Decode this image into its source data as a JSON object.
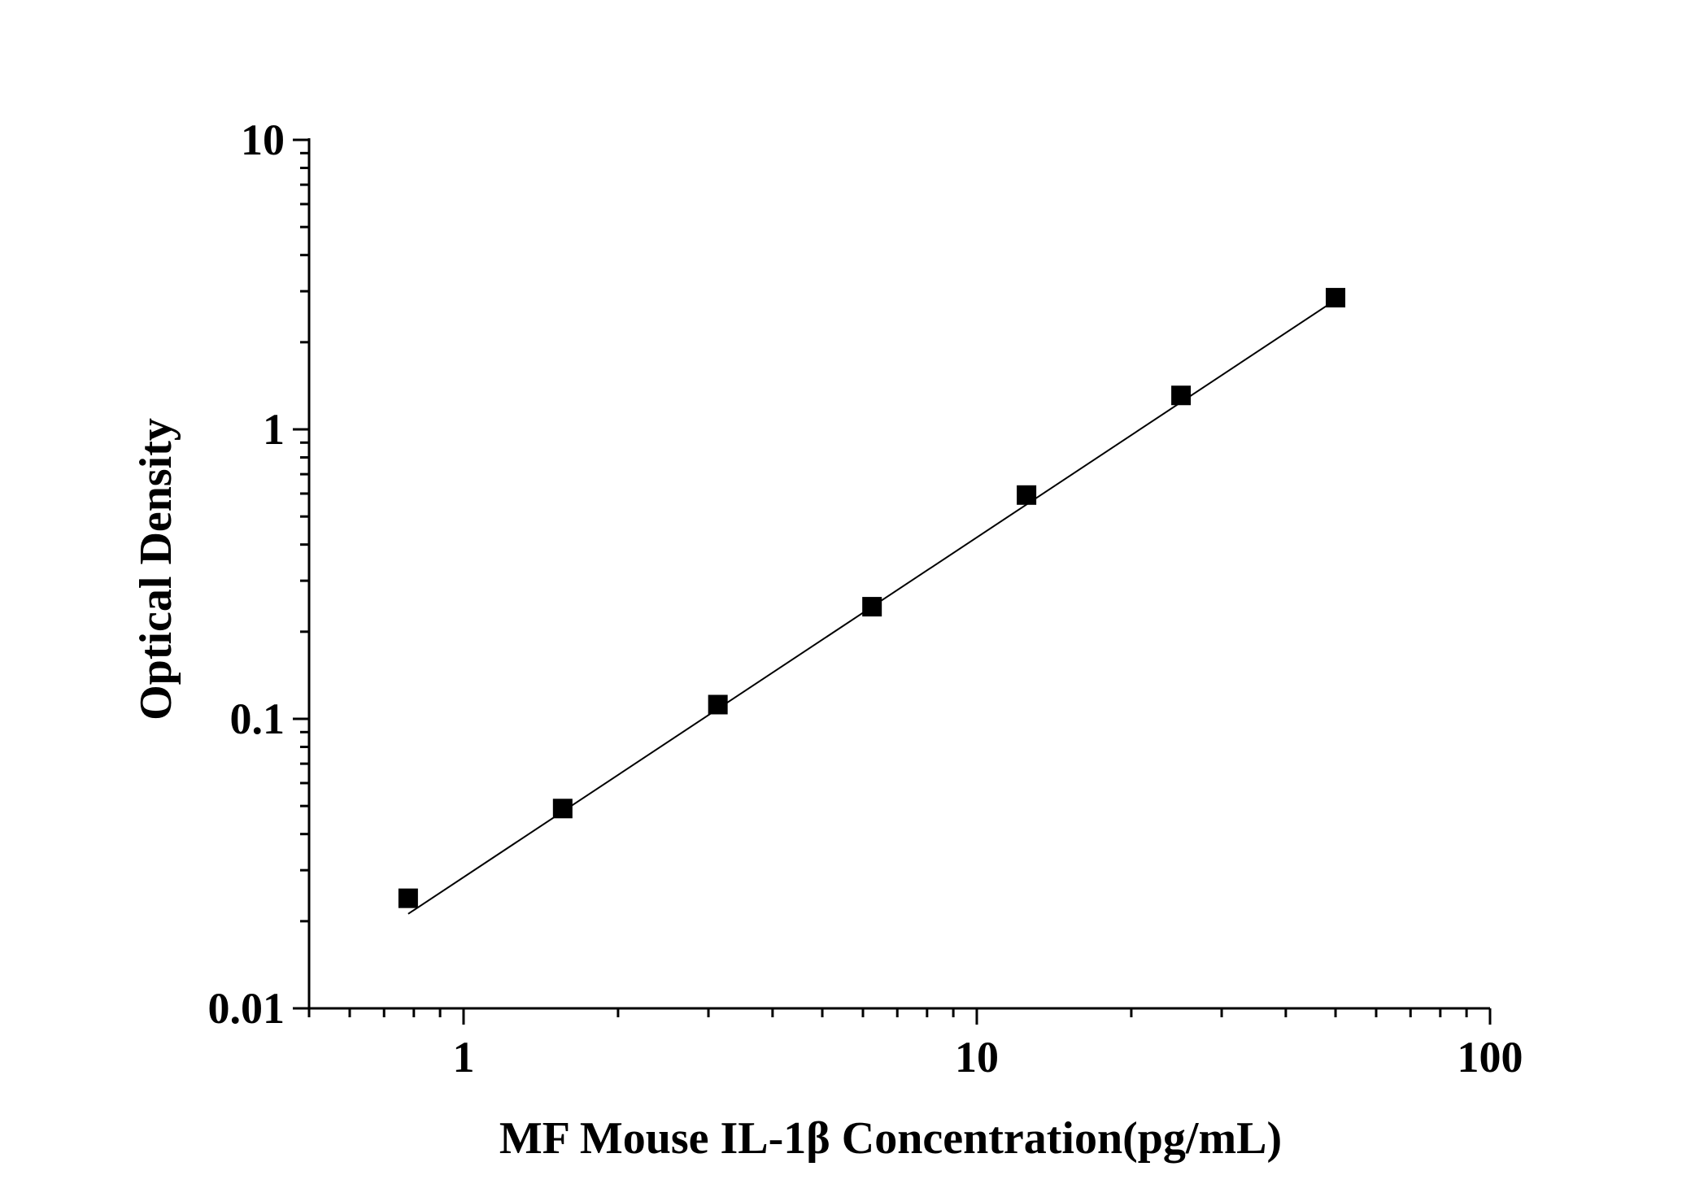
{
  "chart_data": {
    "type": "scatter",
    "title": "",
    "xlabel": "MF Mouse IL-1β Concentration(pg/mL)",
    "ylabel": "Optical Density",
    "x_scale": "log",
    "y_scale": "log",
    "xlim": [
      0.5,
      100
    ],
    "ylim": [
      0.01,
      10
    ],
    "x_tick_labels": [
      {
        "value": 1,
        "label": "1"
      },
      {
        "value": 10,
        "label": "10"
      },
      {
        "value": 100,
        "label": "100"
      }
    ],
    "y_tick_labels": [
      {
        "value": 0.01,
        "label": "0.01"
      },
      {
        "value": 0.1,
        "label": "0.1"
      },
      {
        "value": 1,
        "label": "1"
      },
      {
        "value": 10,
        "label": "10"
      }
    ],
    "grid": false,
    "legend": "none",
    "series": [
      {
        "marker": "square",
        "color": "#000000",
        "x": [
          0.78,
          1.56,
          3.13,
          6.25,
          12.5,
          25,
          50
        ],
        "y": [
          0.024,
          0.049,
          0.112,
          0.244,
          0.593,
          1.31,
          2.85
        ]
      }
    ],
    "fit_line": {
      "color": "#000000",
      "x": [
        0.78,
        50
      ],
      "y": [
        0.0212,
        2.8
      ]
    }
  }
}
